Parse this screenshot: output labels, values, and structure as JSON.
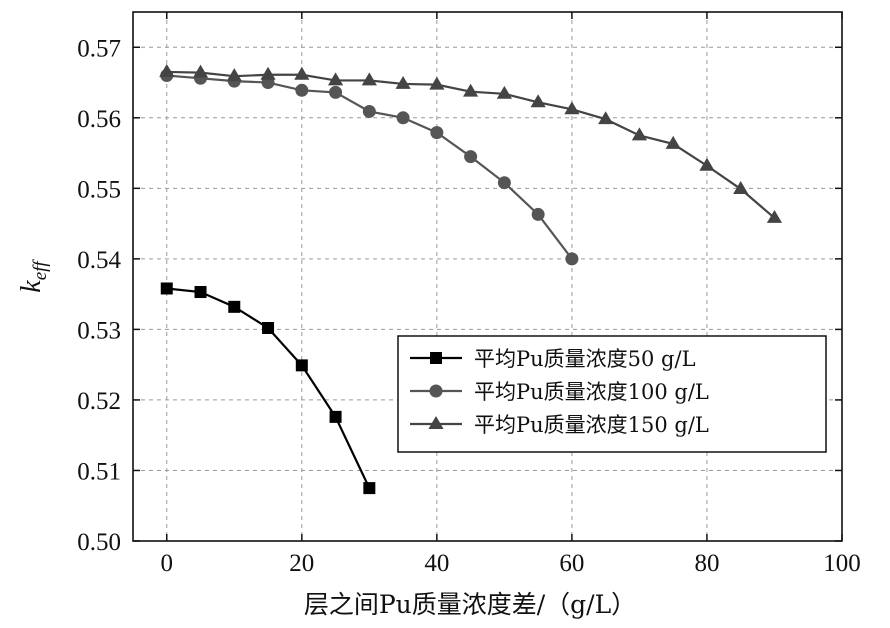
{
  "chart_data": {
    "type": "line",
    "xlabel": "层之间Pu质量浓度差/（g/L）",
    "ylabel_main": "k",
    "ylabel_sub": "eff",
    "xlim": [
      -5,
      100
    ],
    "ylim": [
      0.5,
      0.575
    ],
    "x_ticks": [
      0,
      20,
      40,
      60,
      80,
      100
    ],
    "y_ticks": [
      0.5,
      0.51,
      0.52,
      0.53,
      0.54,
      0.55,
      0.56,
      0.57
    ],
    "x_tick_labels": [
      "0",
      "20",
      "40",
      "60",
      "80",
      "100"
    ],
    "y_tick_labels": [
      "0.50",
      "0.51",
      "0.52",
      "0.53",
      "0.54",
      "0.55",
      "0.56",
      "0.57"
    ],
    "grid": true,
    "legend_position": "center-right",
    "series": [
      {
        "name": "平均Pu质量浓度50 g/L",
        "marker": "square",
        "color": "#000000",
        "x": [
          0,
          5,
          10,
          15,
          20,
          25,
          30
        ],
        "y": [
          0.5358,
          0.5353,
          0.5332,
          0.5302,
          0.5249,
          0.5176,
          0.5075
        ]
      },
      {
        "name": "平均Pu质量浓度100 g/L",
        "marker": "circle",
        "color": "#555555",
        "x": [
          0,
          5,
          10,
          15,
          20,
          25,
          30,
          35,
          40,
          45,
          50,
          55,
          60
        ],
        "y": [
          0.566,
          0.5656,
          0.5652,
          0.565,
          0.5639,
          0.5636,
          0.5609,
          0.56,
          0.5579,
          0.5545,
          0.5508,
          0.5463,
          0.54
        ]
      },
      {
        "name": "平均Pu质量浓度150 g/L",
        "marker": "triangle",
        "color": "#444444",
        "x": [
          0,
          5,
          10,
          15,
          20,
          25,
          30,
          35,
          40,
          45,
          50,
          55,
          60,
          65,
          70,
          75,
          80,
          85,
          90
        ],
        "y": [
          0.5665,
          0.5664,
          0.5659,
          0.5661,
          0.5661,
          0.5653,
          0.5653,
          0.5648,
          0.5647,
          0.5637,
          0.5634,
          0.5622,
          0.5612,
          0.5598,
          0.5575,
          0.5563,
          0.5532,
          0.5499,
          0.5458
        ]
      }
    ]
  }
}
